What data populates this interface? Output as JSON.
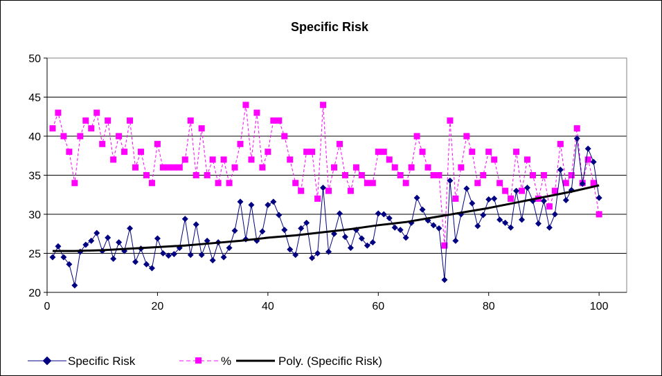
{
  "chart_data": {
    "type": "line",
    "title": "Specific Risk",
    "xlabel": "",
    "ylabel": "",
    "xlim": [
      0,
      105
    ],
    "ylim": [
      20,
      50
    ],
    "xticks": [
      0,
      20,
      40,
      60,
      80,
      100
    ],
    "yticks": [
      20,
      25,
      30,
      35,
      40,
      45,
      50
    ],
    "grid": "horizontal",
    "legend_position": "bottom",
    "colors": {
      "specific_risk": "#000080",
      "percent": "#FF00FF",
      "trend": "#000000",
      "plot_border": "#808080",
      "grid": "#000000"
    },
    "series": [
      {
        "name": "Specific Risk",
        "style": "solid-diamond",
        "x": [
          1,
          2,
          3,
          4,
          5,
          6,
          7,
          8,
          9,
          10,
          11,
          12,
          13,
          14,
          15,
          16,
          17,
          18,
          19,
          20,
          21,
          22,
          23,
          24,
          25,
          26,
          27,
          28,
          29,
          30,
          31,
          32,
          33,
          34,
          35,
          36,
          37,
          38,
          39,
          40,
          41,
          42,
          43,
          44,
          45,
          46,
          47,
          48,
          49,
          50,
          51,
          52,
          53,
          54,
          55,
          56,
          57,
          58,
          59,
          60,
          61,
          62,
          63,
          64,
          65,
          66,
          67,
          68,
          69,
          70,
          71,
          72,
          73,
          74,
          75,
          76,
          77,
          78,
          79,
          80,
          81,
          82,
          83,
          84,
          85,
          86,
          87,
          88,
          89,
          90,
          91,
          92,
          93,
          94,
          95,
          96,
          97,
          98,
          99,
          100
        ],
        "values": [
          24.5,
          25.9,
          24.5,
          23.6,
          20.9,
          25.2,
          26.1,
          26.6,
          27.6,
          25.3,
          27.0,
          24.3,
          26.4,
          25.3,
          28.2,
          23.9,
          25.6,
          23.6,
          23.1,
          26.9,
          25.0,
          24.7,
          24.9,
          25.7,
          29.4,
          24.8,
          28.7,
          24.8,
          26.6,
          24.1,
          26.4,
          24.5,
          25.7,
          27.9,
          31.6,
          26.8,
          31.2,
          26.6,
          27.8,
          31.2,
          31.6,
          29.9,
          28.0,
          25.5,
          24.8,
          28.2,
          28.9,
          24.4,
          25.0,
          33.4,
          25.2,
          27.5,
          30.1,
          27.1,
          25.7,
          28.0,
          26.9,
          26.0,
          26.4,
          30.1,
          30.0,
          29.5,
          28.3,
          28.0,
          27.0,
          28.9,
          32.1,
          30.6,
          29.2,
          28.6,
          28.2,
          21.6,
          34.3,
          26.6,
          30.0,
          33.3,
          31.4,
          28.5,
          29.9,
          31.9,
          32.0,
          29.3,
          28.9,
          28.3,
          33.0,
          29.3,
          33.4,
          31.7,
          28.8,
          31.7,
          28.3,
          30.0,
          35.7,
          31.8,
          33.1,
          39.7,
          33.9,
          38.4,
          36.7,
          32.1
        ]
      },
      {
        "name": "%",
        "style": "dashed-square",
        "x": [
          1,
          2,
          3,
          4,
          5,
          6,
          7,
          8,
          9,
          10,
          11,
          12,
          13,
          14,
          15,
          16,
          17,
          18,
          19,
          20,
          21,
          22,
          23,
          24,
          25,
          26,
          27,
          28,
          29,
          30,
          31,
          32,
          33,
          34,
          35,
          36,
          37,
          38,
          39,
          40,
          41,
          42,
          43,
          44,
          45,
          46,
          47,
          48,
          49,
          50,
          51,
          52,
          53,
          54,
          55,
          56,
          57,
          58,
          59,
          60,
          61,
          62,
          63,
          64,
          65,
          66,
          67,
          68,
          69,
          70,
          71,
          72,
          73,
          74,
          75,
          76,
          77,
          78,
          79,
          80,
          81,
          82,
          83,
          84,
          85,
          86,
          87,
          88,
          89,
          90,
          91,
          92,
          93,
          94,
          95,
          96,
          97,
          98,
          99,
          100
        ],
        "values": [
          41,
          43,
          40,
          38,
          34,
          40,
          42,
          41,
          43,
          39,
          42,
          37,
          40,
          38,
          42,
          36,
          38,
          35,
          34,
          39,
          36,
          36,
          36,
          36,
          37,
          42,
          35,
          41,
          35,
          37,
          34,
          37,
          34,
          36,
          39,
          44,
          37,
          43,
          36,
          38,
          42,
          42,
          40,
          37,
          34,
          33,
          38,
          38,
          32,
          44,
          33,
          36,
          39,
          35,
          33,
          36,
          35,
          34,
          34,
          38,
          38,
          37,
          36,
          35,
          34,
          36,
          40,
          38,
          36,
          35,
          35,
          26,
          42,
          32,
          36,
          40,
          38,
          34,
          35,
          38,
          37,
          34,
          33,
          32,
          38,
          33,
          37,
          35,
          32,
          35,
          31,
          33,
          39,
          34,
          35,
          41,
          34,
          37,
          34,
          30
        ]
      },
      {
        "name": "Poly. (Specific Risk)",
        "style": "thick-line",
        "x": [
          1,
          5,
          10,
          15,
          20,
          25,
          30,
          35,
          40,
          45,
          50,
          55,
          60,
          65,
          70,
          75,
          80,
          85,
          90,
          95,
          100
        ],
        "values": [
          25.3,
          25.3,
          25.4,
          25.6,
          25.8,
          26.0,
          26.3,
          26.6,
          27.0,
          27.3,
          27.7,
          28.1,
          28.6,
          29.0,
          29.6,
          30.2,
          30.8,
          31.5,
          32.2,
          32.9,
          33.7
        ]
      }
    ]
  }
}
